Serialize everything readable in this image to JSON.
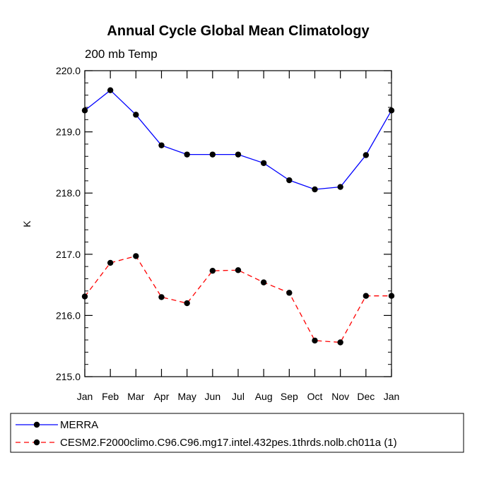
{
  "chart_data": {
    "type": "line",
    "title": "Annual Cycle Global Mean Climatology",
    "subtitle": "200 mb Temp",
    "ylabel": "K",
    "xlabel": "",
    "categories": [
      "Jan",
      "Feb",
      "Mar",
      "Apr",
      "May",
      "Jun",
      "Jul",
      "Aug",
      "Sep",
      "Oct",
      "Nov",
      "Dec",
      "Jan"
    ],
    "ylim": [
      215.0,
      220.0
    ],
    "yticks": [
      215.0,
      216.0,
      217.0,
      218.0,
      219.0,
      220.0
    ],
    "ytick_labels": [
      "215.0",
      "216.0",
      "217.0",
      "218.0",
      "219.0",
      "220.0"
    ],
    "grid": false,
    "legend_position": "bottom-left",
    "series": [
      {
        "name": "MERRA",
        "color": "#0000ff",
        "line_style": "solid",
        "marker": "filled-circle",
        "values": [
          219.35,
          219.68,
          219.28,
          218.78,
          218.63,
          218.63,
          218.63,
          218.49,
          218.21,
          218.06,
          218.1,
          218.62,
          219.35
        ]
      },
      {
        "name": "CESM2.F2000climo.C96.C96.mg17.intel.432pes.1thrds.nolb.ch011a (1)",
        "color": "#ff0000",
        "line_style": "dashed",
        "marker": "filled-circle",
        "values": [
          216.31,
          216.86,
          216.97,
          216.3,
          216.2,
          216.73,
          216.74,
          216.54,
          216.37,
          215.59,
          215.56,
          216.32,
          216.32
        ]
      }
    ]
  }
}
